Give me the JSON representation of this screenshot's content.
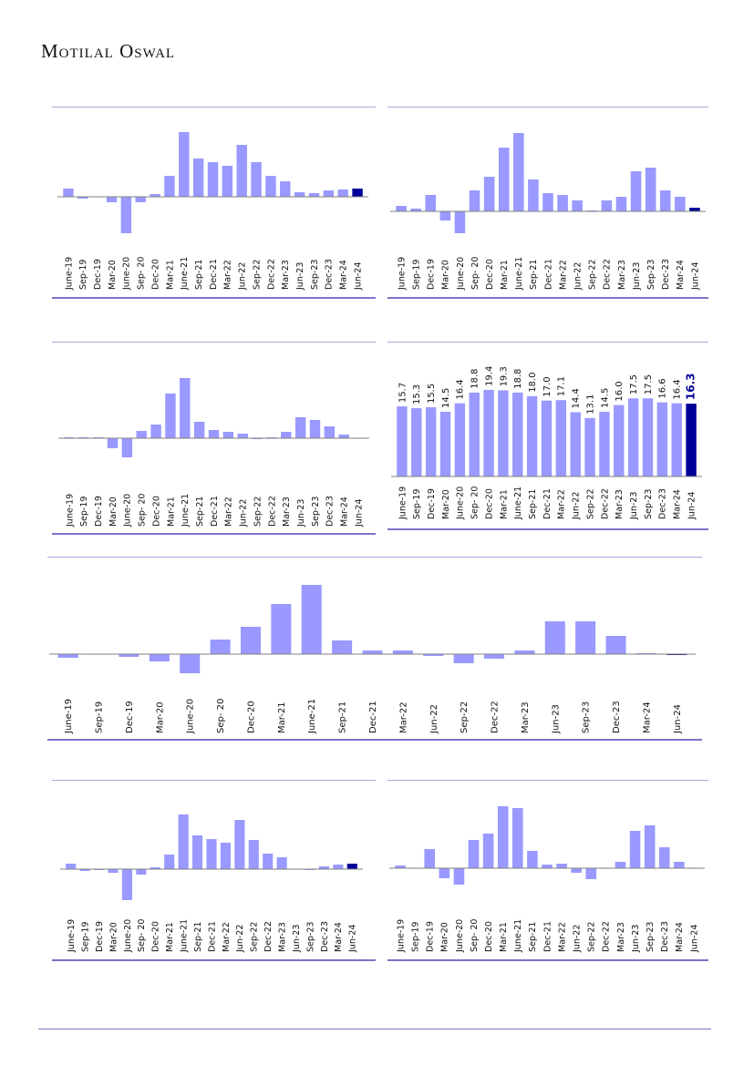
{
  "header": {
    "logo": "Motilal Oswal"
  },
  "colors": {
    "bar": "#9999ff",
    "highlight": "#000099",
    "axis": "#808080"
  },
  "chart_data": [
    {
      "type": "bar",
      "title": "",
      "units": "relative (no axis shown)",
      "categories": [
        "June-19",
        "Sep-19",
        "Dec-19",
        "Mar-20",
        "June-20",
        "Sep- 20",
        "Dec-20",
        "Mar-21",
        "June-21",
        "Sep-21",
        "Dec-21",
        "Mar-22",
        "Jun-22",
        "Sep-22",
        "Dec-22",
        "Mar-23",
        "Jun-23",
        "Sep-23",
        "Dec-23",
        "Mar-24",
        "Jun-24"
      ],
      "values": [
        9,
        -2,
        0,
        -6,
        -40,
        -6,
        3,
        23,
        71,
        42,
        38,
        34,
        57,
        38,
        23,
        17,
        5,
        4,
        7,
        8,
        9
      ],
      "highlight_last": true
    },
    {
      "type": "bar",
      "title": "",
      "units": "relative (no axis shown)",
      "categories": [
        "June-19",
        "Sep-19",
        "Dec-19",
        "Mar-20",
        "June-20",
        "Sep- 20",
        "Dec-20",
        "Mar-21",
        "June-21",
        "Sep-21",
        "Dec-21",
        "Mar-22",
        "Jun-22",
        "Sep-22",
        "Dec-22",
        "Mar-23",
        "Jun-23",
        "Sep-23",
        "Dec-23",
        "Mar-24",
        "Jun-24"
      ],
      "values": [
        6,
        3,
        18,
        -10,
        -24,
        23,
        38,
        70,
        86,
        35,
        20,
        18,
        12,
        1,
        12,
        16,
        44,
        48,
        23,
        16,
        4
      ],
      "highlight_last": true
    },
    {
      "type": "bar",
      "title": "",
      "units": "relative (no axis shown)",
      "categories": [
        "June-19",
        "Sep-19",
        "Dec-19",
        "Mar-20",
        "June-20",
        "Sep- 20",
        "Dec-20",
        "Mar-21",
        "June-21",
        "Sep-21",
        "Dec-21",
        "Mar-22",
        "Jun-22",
        "Sep-22",
        "Dec-22",
        "Mar-23",
        "Jun-23",
        "Sep-23",
        "Dec-23",
        "Mar-24",
        "Jun-24"
      ],
      "values": [
        1,
        1,
        1,
        -11,
        -21,
        8,
        15,
        49,
        66,
        18,
        9,
        7,
        5,
        -1,
        1,
        7,
        23,
        20,
        13,
        4,
        0
      ],
      "highlight_last": false
    },
    {
      "type": "bar",
      "title": "",
      "ylim": [
        0,
        22
      ],
      "categories": [
        "June-19",
        "Sep-19",
        "Dec-19",
        "Mar-20",
        "June-20",
        "Sep- 20",
        "Dec-20",
        "Mar-21",
        "June-21",
        "Sep-21",
        "Dec-21",
        "Mar-22",
        "Jun-22",
        "Sep-22",
        "Dec-22",
        "Mar-23",
        "Jun-23",
        "Sep-23",
        "Dec-23",
        "Mar-24",
        "Jun-24"
      ],
      "values": [
        15.7,
        15.3,
        15.5,
        14.5,
        16.4,
        18.8,
        19.4,
        19.3,
        18.8,
        18.0,
        17.0,
        17.1,
        14.4,
        13.1,
        14.5,
        16.0,
        17.5,
        17.5,
        16.6,
        16.4,
        16.3
      ],
      "labels": [
        "15.7",
        "15.3",
        "15.5",
        "14.5",
        "16.4",
        "18.8",
        "19.4",
        "19.3",
        "18.8",
        "18.0",
        "17.0",
        "17.1",
        "14.4",
        "13.1",
        "14.5",
        "16.0",
        "17.5",
        "17.5",
        "16.6",
        "16.4",
        "16.3"
      ],
      "highlight_last": true
    },
    {
      "type": "bar",
      "title": "",
      "units": "relative (no axis shown)",
      "categories": [
        "June-19",
        "Sep-19",
        "Dec-19",
        "Mar-20",
        "June-20",
        "Sep- 20",
        "Dec-20",
        "Mar-21",
        "June-21",
        "Sep-21",
        "Dec-21",
        "Mar-22",
        "Jun-22",
        "Sep-22",
        "Dec-22",
        "Mar-23",
        "Jun-23",
        "Sep-23",
        "Dec-23",
        "Mar-24",
        "Jun-24"
      ],
      "values": [
        -4,
        0,
        -3,
        -8,
        -21,
        16,
        30,
        55,
        76,
        15,
        4,
        4,
        -2,
        -10,
        -5,
        4,
        36,
        36,
        20,
        1,
        -1
      ],
      "highlight_last": true
    },
    {
      "type": "bar",
      "title": "",
      "units": "relative (no axis shown)",
      "categories": [
        "June-19",
        "Sep-19",
        "Dec-19",
        "Mar-20",
        "June-20",
        "Sep- 20",
        "Dec-20",
        "Mar-21",
        "June-21",
        "Sep-21",
        "Dec-21",
        "Mar-22",
        "Jun-22",
        "Sep-22",
        "Dec-22",
        "Mar-23",
        "Jun-23",
        "Sep-23",
        "Dec-23",
        "Mar-24",
        "Jun-24"
      ],
      "values": [
        6,
        -2,
        -1,
        -4,
        -34,
        -6,
        2,
        16,
        60,
        37,
        33,
        29,
        54,
        32,
        17,
        13,
        0,
        -1,
        3,
        5,
        6
      ],
      "highlight_last": true
    },
    {
      "type": "bar",
      "title": "",
      "units": "relative (no axis shown)",
      "categories": [
        "June-19",
        "Sep-19",
        "Dec-19",
        "Mar-20",
        "June-20",
        "Sep- 20",
        "Dec-20",
        "Mar-21",
        "June-21",
        "Sep-21",
        "Dec-21",
        "Mar-22",
        "Jun-22",
        "Sep-22",
        "Dec-22",
        "Mar-23",
        "Jun-23",
        "Sep-23",
        "Dec-23",
        "Mar-24",
        "Jun-24"
      ],
      "values": [
        3,
        0,
        21,
        -11,
        -18,
        31,
        38,
        68,
        66,
        19,
        4,
        5,
        -5,
        -12,
        0,
        7,
        41,
        47,
        23,
        7,
        0
      ],
      "highlight_last": false
    }
  ]
}
